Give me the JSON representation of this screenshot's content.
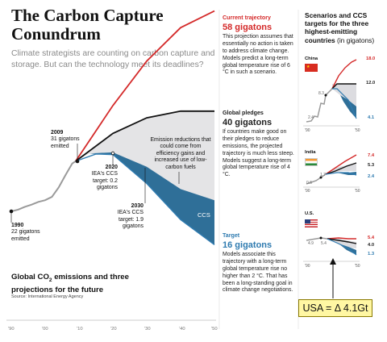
{
  "title": "The Carbon Capture Conundrum",
  "deck": "Climate strategists are counting on carbon capture and storage. But can the technology meet its deadlines?",
  "main_chart": {
    "annotations": {
      "y1990_year": "1990",
      "y1990_text": "22 gigatons emitted",
      "y2009_year": "2009",
      "y2009_text": "31 gigatons emitted",
      "y2020_year": "2020",
      "y2020_text": "IEA's CCS target: 0.2 gigatons",
      "y2030_year": "2030",
      "y2030_text": "IEA's CCS target: 1.9 gigatons",
      "gap_text": "Emission reductions that could come from efficiency gains and increased use of low-carbon fuels",
      "ccs_label": "CCS"
    },
    "subtitle_line1": "Global CO",
    "subtitle_sub": "2",
    "subtitle_line1_rest": " emissions and three",
    "subtitle_line2": "projections for the future",
    "source": "Source: International Energy Agency",
    "x_ticks": [
      "'90",
      "'00",
      "'10",
      "'20",
      "'30",
      "'40",
      "'50"
    ]
  },
  "chart_data": [
    {
      "type": "line",
      "x": [
        1990,
        1992,
        1994,
        1996,
        1998,
        2000,
        2002,
        2004,
        2006,
        2008,
        2009,
        2020,
        2030,
        2040,
        2050
      ],
      "series": [
        {
          "name": "Current trajectory",
          "values": [
            22,
            22.3,
            22.8,
            23.2,
            23.7,
            24.0,
            24.6,
            26.3,
            28.5,
            30.6,
            31,
            null,
            null,
            null,
            58
          ],
          "color": "#d42a2a"
        },
        {
          "name": "Global pledges",
          "values": [
            null,
            null,
            null,
            null,
            null,
            null,
            null,
            null,
            null,
            null,
            31,
            null,
            null,
            40,
            40
          ],
          "color": "#111111"
        },
        {
          "name": "Target",
          "values": [
            null,
            null,
            null,
            null,
            null,
            null,
            null,
            null,
            null,
            null,
            31,
            null,
            null,
            null,
            16
          ],
          "color": "#2f7bb0"
        }
      ],
      "xlim": [
        1987,
        2052
      ]
    },
    {
      "type": "line",
      "label": "China",
      "values_2050": {
        "current": 18.0,
        "pledges": 12.0,
        "target": 4.1
      },
      "value_2009": 8.3,
      "value_1990": 2.4
    },
    {
      "type": "line",
      "label": "India",
      "values_2050": {
        "current": 7.4,
        "pledges": 5.3,
        "target": 2.4
      },
      "value_2009": 1.7,
      "value_1990": 0.6
    },
    {
      "type": "line",
      "label": "U.S.",
      "values_2050": {
        "current": 5.4,
        "pledges": 4.0,
        "target": 1.3
      },
      "value_2009": 5.4,
      "value_1990": 4.9
    }
  ],
  "side": {
    "current_head": "Current trajectory",
    "current_value": "58 gigatons",
    "current_text": "This projection assumes that essentially no action is taken to address climate change. Models predict a long-term global temperature rise of 6 °C in such a scenario.",
    "pledges_head": "Global pledges",
    "pledges_value": "40 gigatons",
    "pledges_text": "If countries make good on their pledges to reduce emissions, the projected trajectory is much less steep. Models suggest a long-term global temperature rise of 4 °C.",
    "target_head": "Target",
    "target_value": "16 gigatons",
    "target_text": "Models associate this trajectory with a long-term global temperature rise no higher than 2 °C. That has been a long-standing goal in climate change negotiations."
  },
  "small_multiples": {
    "title": "Scenarios and CCS targets for the three highest-emitting countries",
    "title_unit": "(in gigatons)",
    "china": {
      "name": "China",
      "v1990": "2.4",
      "v2009": "8.3",
      "current": "18.0",
      "pledges": "12.0",
      "target": "4.1"
    },
    "india": {
      "name": "India",
      "v1990": "0.6",
      "v2009": "1.7",
      "current": "7.4",
      "pledges": "5.3",
      "target": "2.4"
    },
    "us": {
      "name": "U.S.",
      "v1990": "4.9",
      "v2009": "5.4",
      "current": "5.4",
      "pledges": "4.0",
      "target": "1.3"
    },
    "tick_start": "'90",
    "tick_end": "'50"
  },
  "callout": "USA = Δ 4.1Gt",
  "colors": {
    "red": "#d42a2a",
    "black": "#111111",
    "blue": "#2f7bb0",
    "gap": "#e4e4e6",
    "gray": "#9a9a9a",
    "box": "#fff7a3"
  }
}
